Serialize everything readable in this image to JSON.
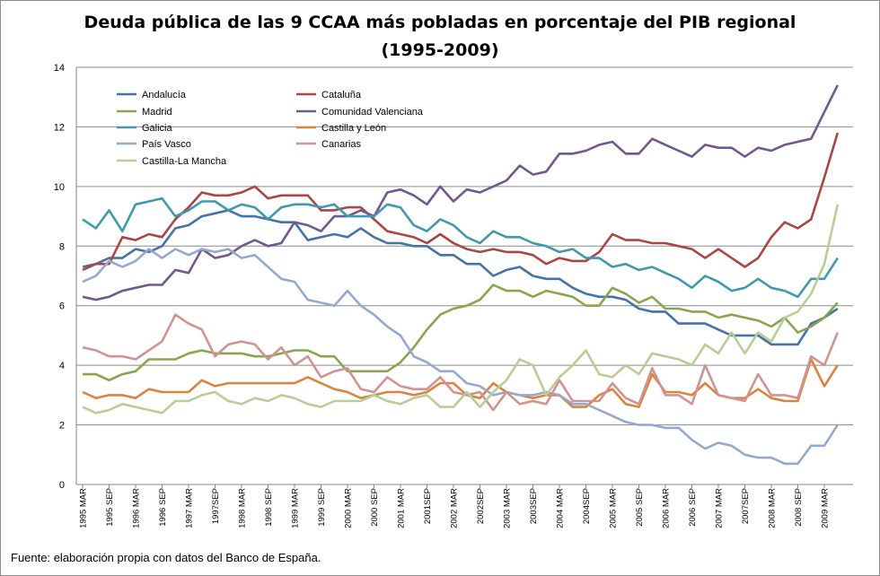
{
  "chart_data": {
    "type": "line",
    "title": "Deuda pública de las 9 CCAA más pobladas en porcentaje del PIB regional",
    "subtitle": "(1995-2009)",
    "xlabel": "",
    "ylabel": "",
    "ylim": [
      0,
      14
    ],
    "y_ticks": [
      "0",
      "2",
      "4",
      "6",
      "8",
      "10",
      "12",
      "14"
    ],
    "x_tick_labels": [
      "1995 MAR",
      "1995 SEP",
      "1996 MAR",
      "1996 SEP",
      "1997 MAR",
      "1997SEP",
      "1998 MAR",
      "1998 SEP",
      "1999 MAR",
      "1999 SEP",
      "2000 MAR",
      "2000 SEP",
      "2001 MAR",
      "2001SEP",
      "2002 MAR",
      "2002SEP",
      "2003 MAR",
      "2003SEP",
      "2004 MAR",
      "2004SEP",
      "2005 MAR",
      "2005 SEP",
      "2006 MAR",
      "2006 SEP",
      "2007 MAR",
      "2007SEP",
      "2008 MAR",
      "2008 SEP",
      "2009 MAR"
    ],
    "x_frequency": "quarterly",
    "grid": "horizontal",
    "legend_position": "top-left",
    "series": [
      {
        "name": "Andalucía",
        "color": "#4572a7",
        "values": [
          7.3,
          7.4,
          7.6,
          7.6,
          7.9,
          7.8,
          8.0,
          8.6,
          8.7,
          9.0,
          9.1,
          9.2,
          9.0,
          9.0,
          8.9,
          8.8,
          8.8,
          8.2,
          8.3,
          8.4,
          8.3,
          8.6,
          8.3,
          8.1,
          8.1,
          8.0,
          8.0,
          7.7,
          7.7,
          7.4,
          7.4,
          7.0,
          7.2,
          7.3,
          7.0,
          6.9,
          6.9,
          6.6,
          6.4,
          6.3,
          6.3,
          6.2,
          5.9,
          5.8,
          5.8,
          5.4,
          5.4,
          5.4,
          5.2,
          5.0,
          5.0,
          5.0,
          4.7,
          4.7,
          4.7,
          5.4,
          5.6,
          5.9
        ]
      },
      {
        "name": "Cataluña",
        "color": "#aa4643",
        "values": [
          7.2,
          7.4,
          7.4,
          8.3,
          8.2,
          8.4,
          8.3,
          8.9,
          9.3,
          9.8,
          9.7,
          9.7,
          9.8,
          10.0,
          9.6,
          9.7,
          9.7,
          9.7,
          9.2,
          9.2,
          9.3,
          9.3,
          8.9,
          8.5,
          8.4,
          8.3,
          8.1,
          8.4,
          8.1,
          7.9,
          7.8,
          7.9,
          7.8,
          7.8,
          7.7,
          7.4,
          7.6,
          7.5,
          7.5,
          7.8,
          8.4,
          8.2,
          8.2,
          8.1,
          8.1,
          8.0,
          7.9,
          7.6,
          7.9,
          7.6,
          7.3,
          7.6,
          8.3,
          8.8,
          8.6,
          8.9,
          10.3,
          11.8
        ]
      },
      {
        "name": "Madrid",
        "color": "#89a54e",
        "values": [
          3.7,
          3.7,
          3.5,
          3.7,
          3.8,
          4.2,
          4.2,
          4.2,
          4.4,
          4.5,
          4.4,
          4.4,
          4.4,
          4.3,
          4.3,
          4.4,
          4.5,
          4.5,
          4.3,
          4.3,
          3.8,
          3.8,
          3.8,
          3.8,
          4.1,
          4.6,
          5.2,
          5.7,
          5.9,
          6.0,
          6.2,
          6.7,
          6.5,
          6.5,
          6.3,
          6.5,
          6.4,
          6.3,
          6.0,
          6.0,
          6.6,
          6.4,
          6.1,
          6.3,
          5.9,
          5.9,
          5.8,
          5.8,
          5.6,
          5.7,
          5.6,
          5.5,
          5.3,
          5.6,
          5.1,
          5.3,
          5.6,
          6.1
        ]
      },
      {
        "name": "Comunidad Valenciana",
        "color": "#71588f",
        "values": [
          6.3,
          6.2,
          6.3,
          6.5,
          6.6,
          6.7,
          6.7,
          7.2,
          7.1,
          7.9,
          7.6,
          7.7,
          8.0,
          8.2,
          8.0,
          8.1,
          8.8,
          8.7,
          8.5,
          9.0,
          9.0,
          9.2,
          9.0,
          9.8,
          9.9,
          9.7,
          9.4,
          10.0,
          9.5,
          9.9,
          9.8,
          10.0,
          10.2,
          10.7,
          10.4,
          10.5,
          11.1,
          11.1,
          11.2,
          11.4,
          11.5,
          11.1,
          11.1,
          11.6,
          11.4,
          11.2,
          11.0,
          11.4,
          11.3,
          11.3,
          11.0,
          11.3,
          11.2,
          11.4,
          11.5,
          11.6,
          12.5,
          13.4
        ]
      },
      {
        "name": "Galicia",
        "color": "#4198af",
        "values": [
          8.9,
          8.6,
          9.2,
          8.5,
          9.4,
          9.5,
          9.6,
          9.0,
          9.2,
          9.5,
          9.5,
          9.2,
          9.4,
          9.3,
          8.9,
          9.3,
          9.4,
          9.4,
          9.3,
          9.4,
          9.0,
          9.0,
          9.0,
          9.4,
          9.3,
          8.7,
          8.5,
          8.9,
          8.7,
          8.3,
          8.1,
          8.5,
          8.3,
          8.3,
          8.1,
          8.0,
          7.8,
          7.9,
          7.6,
          7.6,
          7.3,
          7.4,
          7.2,
          7.3,
          7.1,
          6.9,
          6.6,
          7.0,
          6.8,
          6.5,
          6.6,
          6.9,
          6.6,
          6.5,
          6.3,
          6.9,
          6.9,
          7.6
        ]
      },
      {
        "name": "Castilla y León",
        "color": "#db843d",
        "values": [
          3.1,
          2.9,
          3.0,
          3.0,
          2.9,
          3.2,
          3.1,
          3.1,
          3.1,
          3.5,
          3.3,
          3.4,
          3.4,
          3.4,
          3.4,
          3.4,
          3.4,
          3.6,
          3.4,
          3.2,
          3.1,
          2.9,
          3.0,
          3.1,
          3.1,
          3.0,
          3.1,
          3.4,
          3.4,
          3.0,
          2.9,
          3.4,
          3.1,
          3.0,
          2.9,
          3.0,
          3.0,
          2.6,
          2.6,
          3.0,
          3.2,
          2.7,
          2.6,
          3.7,
          3.1,
          3.1,
          3.0,
          3.4,
          3.0,
          2.9,
          2.9,
          3.2,
          2.9,
          2.8,
          2.8,
          4.2,
          3.3,
          4.0
        ]
      },
      {
        "name": "País Vasco",
        "color": "#93a9cf",
        "values": [
          6.8,
          7.0,
          7.5,
          7.3,
          7.5,
          7.9,
          7.6,
          7.9,
          7.7,
          7.9,
          7.8,
          7.9,
          7.6,
          7.7,
          7.3,
          6.9,
          6.8,
          6.2,
          6.1,
          6.0,
          6.5,
          6.0,
          5.7,
          5.3,
          5.0,
          4.3,
          4.1,
          3.8,
          3.8,
          3.4,
          3.3,
          3.0,
          3.1,
          3.0,
          3.0,
          3.1,
          3.0,
          2.7,
          2.7,
          2.5,
          2.3,
          2.1,
          2.0,
          2.0,
          1.9,
          1.9,
          1.5,
          1.2,
          1.4,
          1.3,
          1.0,
          0.9,
          0.9,
          0.7,
          0.7,
          1.3,
          1.3,
          2.0
        ]
      },
      {
        "name": "Canarias",
        "color": "#d19392",
        "values": [
          4.6,
          4.5,
          4.3,
          4.3,
          4.2,
          4.5,
          4.8,
          5.7,
          5.4,
          5.2,
          4.3,
          4.7,
          4.8,
          4.7,
          4.2,
          4.6,
          4.0,
          4.3,
          3.6,
          3.8,
          3.9,
          3.2,
          3.1,
          3.6,
          3.3,
          3.2,
          3.2,
          3.6,
          3.1,
          3.0,
          3.1,
          2.5,
          3.1,
          2.7,
          2.8,
          2.7,
          3.5,
          2.8,
          2.8,
          2.8,
          3.4,
          2.9,
          2.7,
          3.9,
          3.0,
          3.0,
          2.7,
          4.0,
          3.0,
          2.9,
          2.8,
          3.7,
          3.0,
          3.0,
          2.9,
          4.3,
          4.0,
          5.1
        ]
      },
      {
        "name": "Castilla-La Mancha",
        "color": "#b9cd96",
        "values": [
          2.6,
          2.4,
          2.5,
          2.7,
          2.6,
          2.5,
          2.4,
          2.8,
          2.8,
          3.0,
          3.1,
          2.8,
          2.7,
          2.9,
          2.8,
          3.0,
          2.9,
          2.7,
          2.6,
          2.8,
          2.8,
          2.8,
          3.0,
          2.8,
          2.7,
          2.9,
          3.0,
          2.6,
          2.6,
          3.1,
          2.6,
          3.1,
          3.5,
          4.2,
          4.0,
          3.0,
          3.6,
          4.0,
          4.5,
          3.7,
          3.6,
          4.0,
          3.7,
          4.4,
          4.3,
          4.2,
          4.0,
          4.7,
          4.4,
          5.1,
          4.4,
          5.1,
          4.8,
          5.6,
          5.8,
          6.4,
          7.4,
          9.4
        ]
      }
    ]
  },
  "footer": "Fuente: elaboración propia con datos del Banco de España."
}
